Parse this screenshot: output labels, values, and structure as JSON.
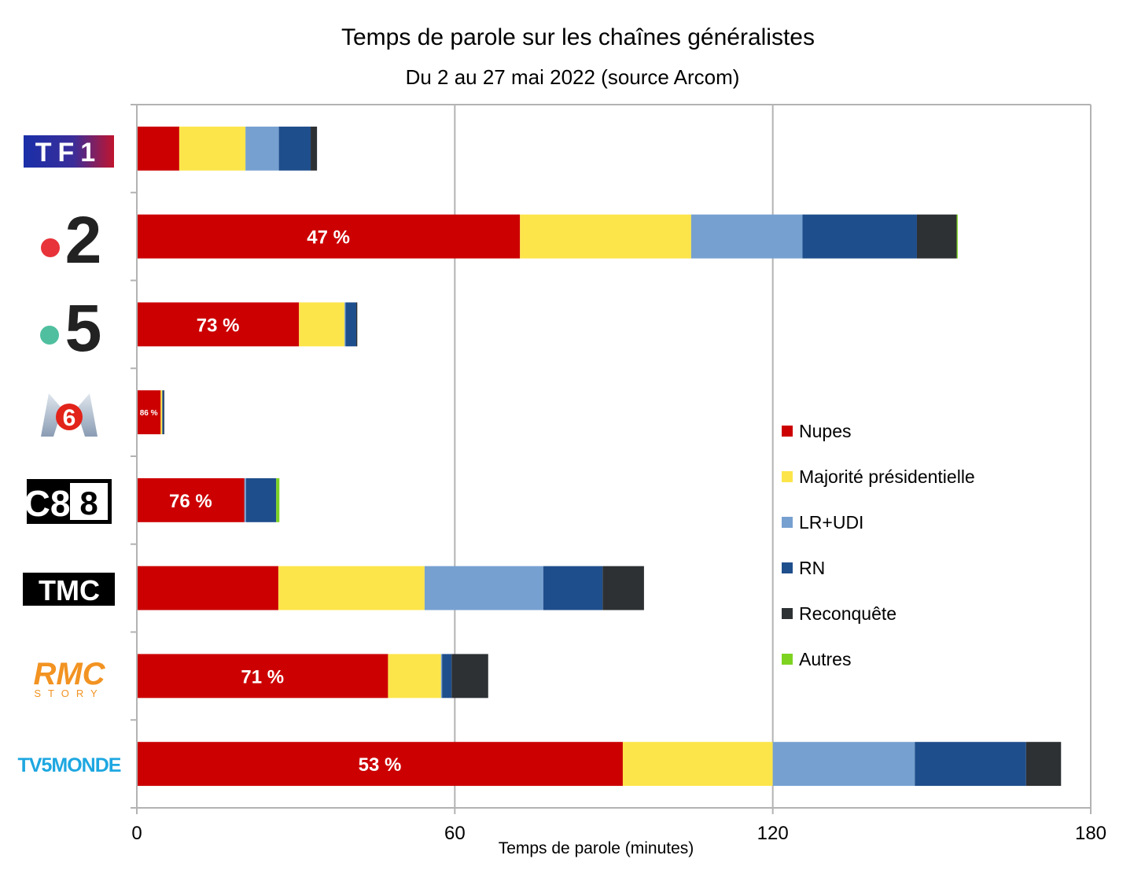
{
  "chart_data": {
    "type": "bar",
    "orientation": "horizontal",
    "stacked": true,
    "title": "Temps de parole sur les chaînes généralistes",
    "subtitle": "Du 2 au 27 mai 2022 (source Arcom)",
    "xlabel": "Temps de parole (minutes)",
    "ylabel": "",
    "xlim": [
      0,
      180
    ],
    "xticks": [
      0,
      60,
      120,
      180
    ],
    "grid": true,
    "legend_position": "right",
    "categories": [
      "TF1",
      "France 2",
      "France 5",
      "M6",
      "C8",
      "TMC",
      "RMC Story",
      "TV5MONDE"
    ],
    "series": [
      {
        "name": "Nupes",
        "color": "#cc0000",
        "values": [
          8,
          72.3,
          30.6,
          4.5,
          20.3,
          26.7,
          47.4,
          91.7
        ]
      },
      {
        "name": "Majorité présidentielle",
        "color": "#fce54b",
        "values": [
          12.5,
          32.3,
          8.6,
          0.3,
          0,
          27.6,
          10,
          28.3
        ]
      },
      {
        "name": "LR+UDI",
        "color": "#76a0d0",
        "values": [
          6.3,
          21,
          0.2,
          0,
          0.3,
          22.4,
          0.2,
          26.8
        ]
      },
      {
        "name": "RN",
        "color": "#1f4e8c",
        "values": [
          6,
          21.6,
          2,
          0.3,
          5.7,
          11.2,
          1.8,
          21
        ]
      },
      {
        "name": "Reconquête",
        "color": "#2e3133",
        "values": [
          1.2,
          7.5,
          0.2,
          0.1,
          0,
          7.8,
          6.9,
          6.6
        ]
      },
      {
        "name": "Autres",
        "color": "#7ed321",
        "values": [
          0,
          0.2,
          0,
          0,
          0.6,
          0,
          0,
          0
        ]
      }
    ],
    "bar_labels": [
      "",
      "47 %",
      "73 %",
      "86 %",
      "76 %",
      "",
      "71 %",
      "53 %"
    ]
  },
  "channels": [
    {
      "key": "tf1",
      "text": "TF1"
    },
    {
      "key": "f2",
      "text": "2"
    },
    {
      "key": "f5",
      "text": "5"
    },
    {
      "key": "m6",
      "text": "6"
    },
    {
      "key": "c8",
      "text": "C8"
    },
    {
      "key": "tmc",
      "text": "TMC"
    },
    {
      "key": "rmc",
      "text": "RMC",
      "sub": "STORY"
    },
    {
      "key": "tv5",
      "text": "TV5MONDE"
    }
  ]
}
